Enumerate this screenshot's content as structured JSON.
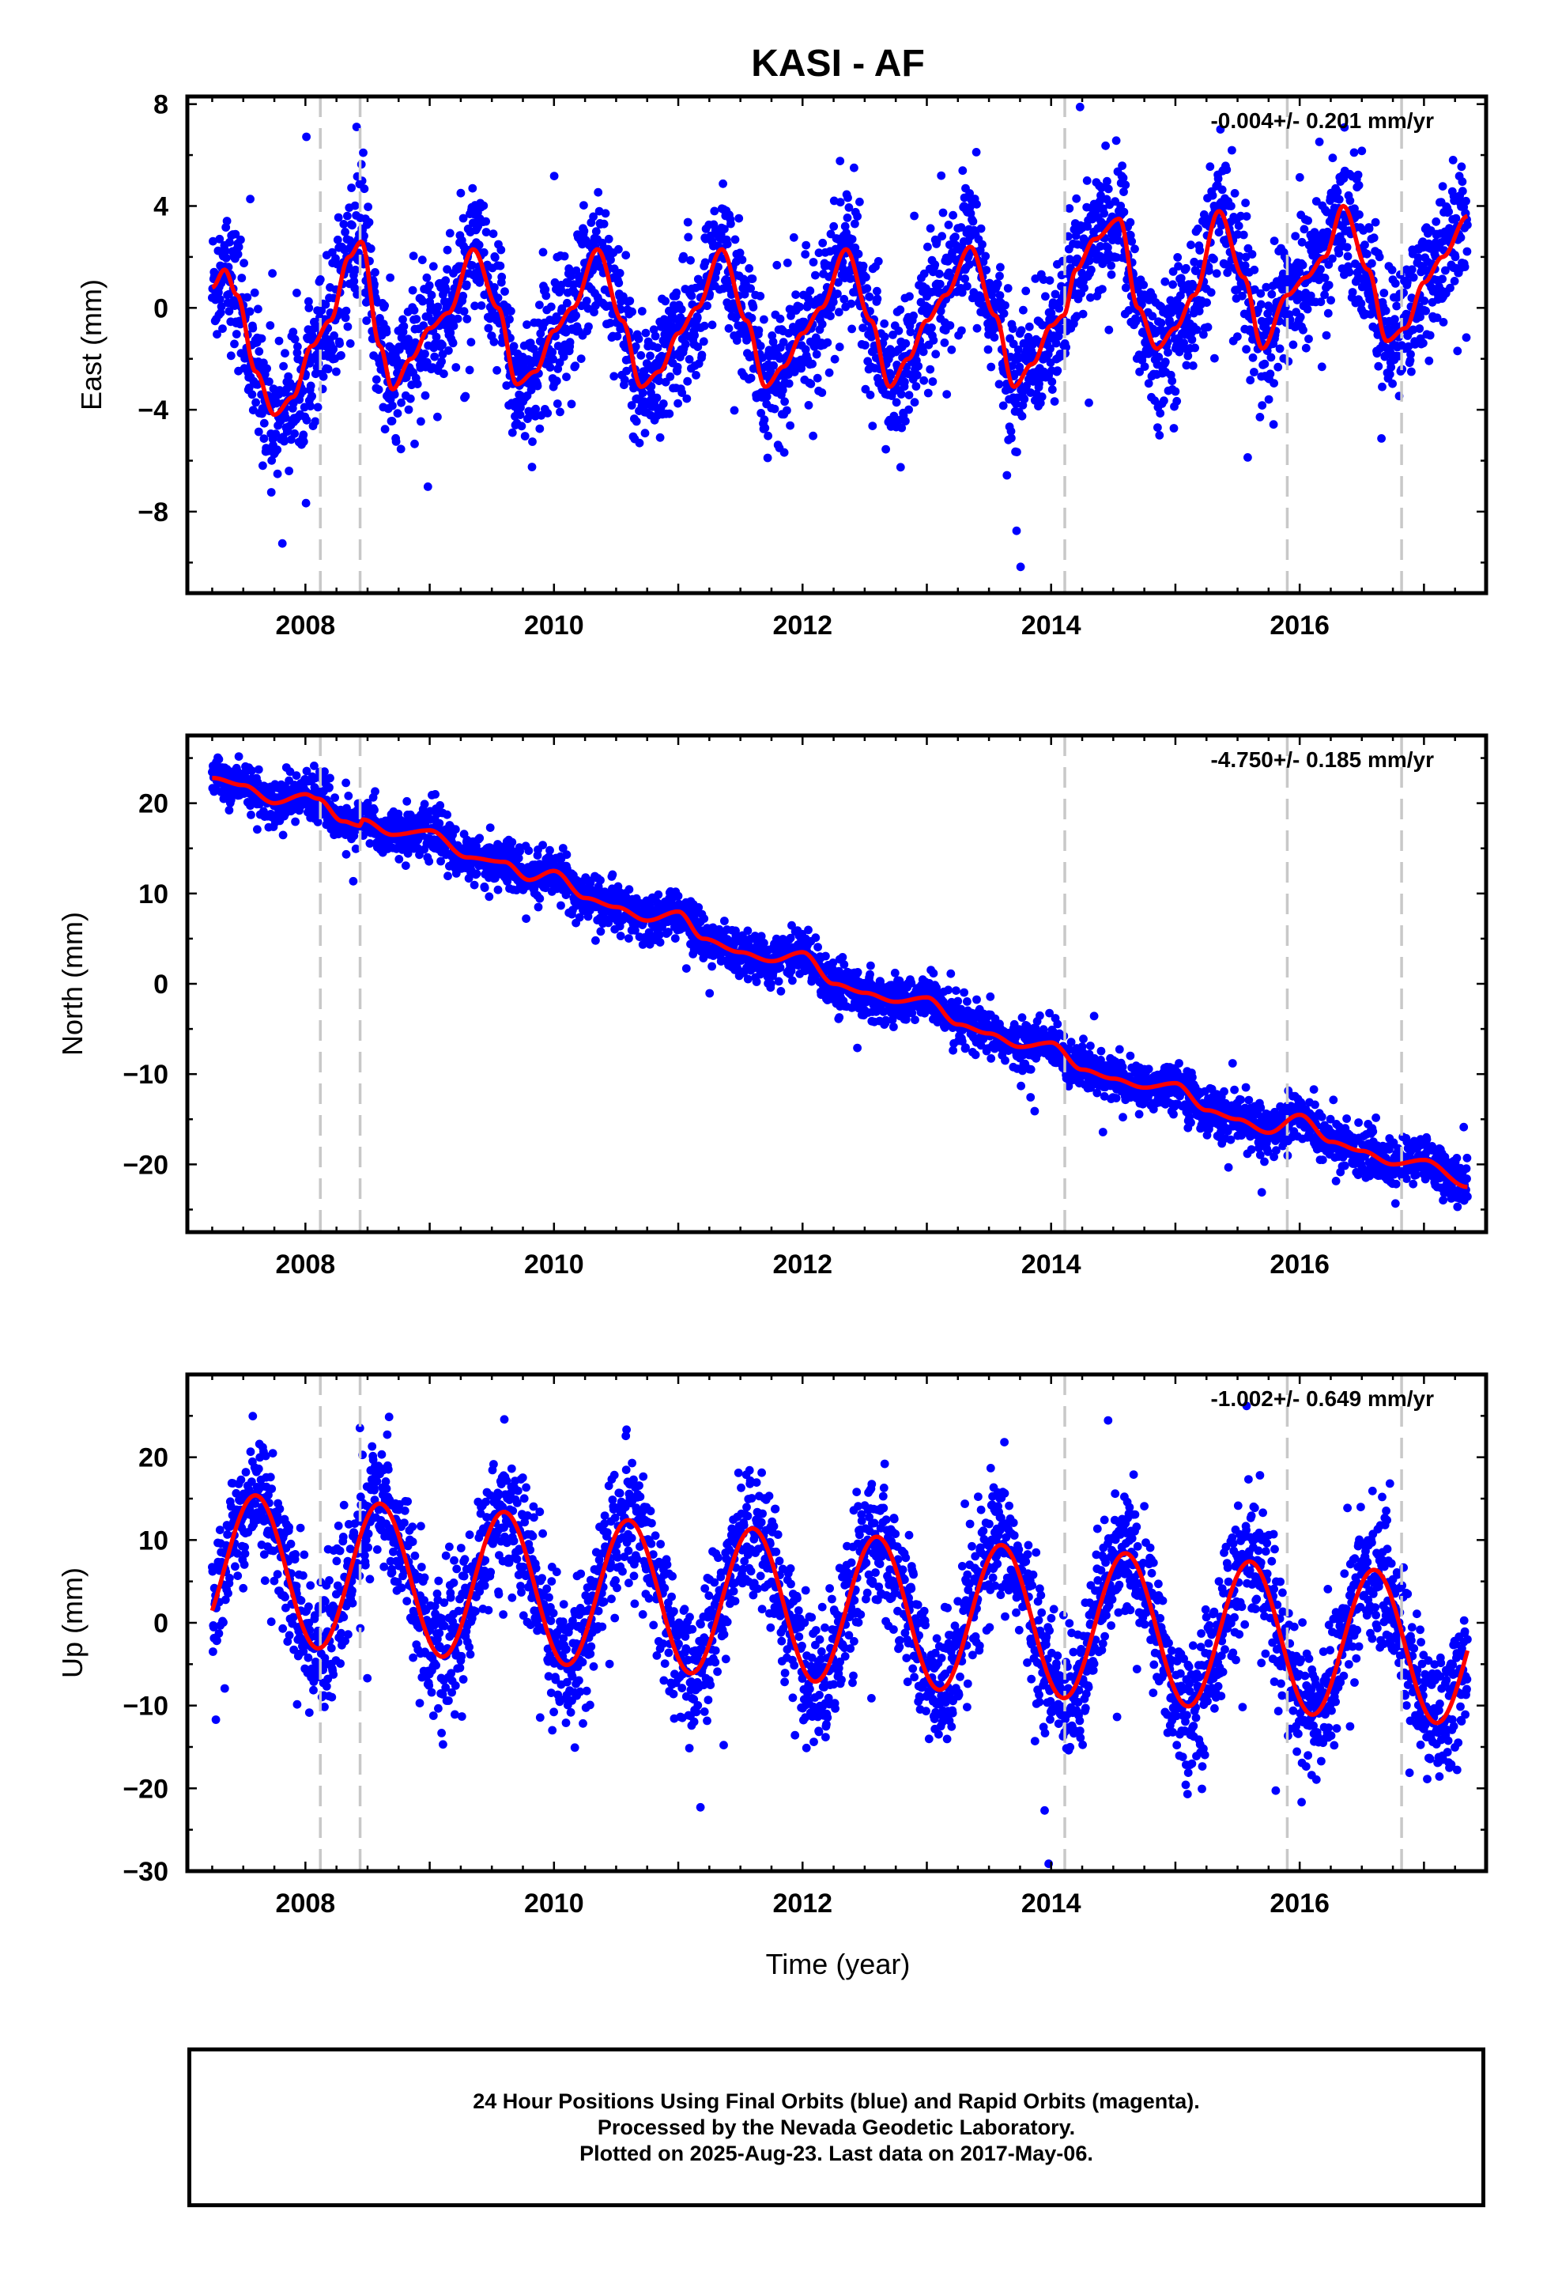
{
  "title": "KASI - AF",
  "colors": {
    "points": "#0000ff",
    "model": "#ff0000",
    "breaks": "#c8c8c8",
    "frame": "#000000"
  },
  "xlabel": "Time (year)",
  "footer": {
    "line1": "24 Hour Positions Using Final Orbits (blue) and Rapid Orbits (magenta).",
    "line2": "Processed by the Nevada Geodetic Laboratory.",
    "line3": "Plotted on 2025-Aug-23. Last data on 2017-May-06."
  },
  "chart_data": [
    {
      "type": "scatter",
      "component": "east",
      "ylabel": "East (mm)",
      "rate_label": "-0.004+/- 0.201 mm/yr",
      "xlim": [
        2007.05,
        2017.5
      ],
      "ylim": [
        -11.2,
        8.3
      ],
      "xticks": [
        2008,
        2010,
        2012,
        2014,
        2016
      ],
      "xtick_labels": [
        "2008",
        "2010",
        "2012",
        "2014",
        "2016"
      ],
      "yticks": [
        -8,
        -4,
        0,
        4,
        8
      ],
      "ytick_labels": [
        "−8",
        "−4",
        "0",
        "4",
        "8"
      ],
      "data_range": [
        2007.25,
        2017.35
      ],
      "breaks": [
        2008.12,
        2008.44,
        2014.11,
        2015.9,
        2016.82
      ],
      "series": [
        {
          "role": "model",
          "x": [
            2007.25,
            2007.35,
            2007.45,
            2007.6,
            2007.75,
            2007.9,
            2008.05,
            2008.2,
            2008.35,
            2008.45,
            2008.6,
            2008.7,
            2008.85,
            2009.0,
            2009.15,
            2009.35,
            2009.55,
            2009.7,
            2009.85,
            2010.0,
            2010.15,
            2010.35,
            2010.55,
            2010.7,
            2010.85,
            2011.0,
            2011.15,
            2011.35,
            2011.55,
            2011.7,
            2011.85,
            2012.0,
            2012.15,
            2012.35,
            2012.55,
            2012.7,
            2012.85,
            2013.0,
            2013.15,
            2013.35,
            2013.55,
            2013.7,
            2013.85,
            2014.0,
            2014.1,
            2014.2,
            2014.35,
            2014.55,
            2014.7,
            2014.85,
            2015.0,
            2015.15,
            2015.35,
            2015.55,
            2015.7,
            2015.9,
            2016.05,
            2016.2,
            2016.35,
            2016.55,
            2016.7,
            2016.85,
            2017.0,
            2017.15,
            2017.35
          ],
          "y": [
            0.8,
            1.5,
            0.5,
            -2.5,
            -4.2,
            -3.5,
            -1.5,
            -0.5,
            2.0,
            2.6,
            -1.5,
            -3.2,
            -2.0,
            -0.8,
            -0.2,
            2.3,
            0.0,
            -3.0,
            -2.5,
            -0.9,
            0.0,
            2.3,
            -0.5,
            -3.1,
            -2.5,
            -1.0,
            0.0,
            2.3,
            -0.5,
            -3.1,
            -2.3,
            -1.0,
            0.0,
            2.3,
            -0.5,
            -3.1,
            -2.0,
            -0.5,
            0.5,
            2.4,
            -0.3,
            -3.1,
            -2.2,
            -0.7,
            -0.3,
            1.5,
            2.7,
            3.5,
            0.0,
            -1.6,
            -0.8,
            0.5,
            3.8,
            1.2,
            -1.6,
            0.5,
            1.2,
            2.0,
            4.0,
            1.5,
            -1.3,
            -0.8,
            1.0,
            2.0,
            3.6
          ]
        },
        {
          "role": "observations",
          "note": "daily positions; amplitude about model",
          "scatter_sd_mm": 1.3
        }
      ]
    },
    {
      "type": "scatter",
      "component": "north",
      "ylabel": "North (mm)",
      "rate_label": "-4.750+/- 0.185 mm/yr",
      "xlim": [
        2007.05,
        2017.5
      ],
      "ylim": [
        -27.5,
        27.5
      ],
      "xticks": [
        2008,
        2010,
        2012,
        2014,
        2016
      ],
      "xtick_labels": [
        "2008",
        "2010",
        "2012",
        "2014",
        "2016"
      ],
      "yticks": [
        -20,
        -10,
        0,
        10,
        20
      ],
      "ytick_labels": [
        "−20",
        "−10",
        "0",
        "10",
        "20"
      ],
      "data_range": [
        2007.25,
        2017.35
      ],
      "breaks": [
        2008.12,
        2008.44,
        2014.11,
        2015.9,
        2016.82
      ],
      "series": [
        {
          "role": "model",
          "x": [
            2007.25,
            2007.5,
            2007.75,
            2008.0,
            2008.1,
            2008.3,
            2008.44,
            2008.46,
            2008.7,
            2009.0,
            2009.3,
            2009.6,
            2009.8,
            2010.0,
            2010.25,
            2010.5,
            2010.75,
            2011.0,
            2011.2,
            2011.5,
            2011.75,
            2012.0,
            2012.25,
            2012.5,
            2012.75,
            2013.0,
            2013.25,
            2013.5,
            2013.75,
            2014.0,
            2014.25,
            2014.5,
            2014.75,
            2015.0,
            2015.25,
            2015.5,
            2015.75,
            2016.0,
            2016.25,
            2016.5,
            2016.75,
            2017.0,
            2017.35
          ],
          "y": [
            22.8,
            22.0,
            20.0,
            21.0,
            20.5,
            18.0,
            17.5,
            18.2,
            16.5,
            17.0,
            14.0,
            13.5,
            11.5,
            12.5,
            9.5,
            8.5,
            7.0,
            8.0,
            5.0,
            3.5,
            2.5,
            3.5,
            0.0,
            -1.0,
            -2.0,
            -1.5,
            -4.5,
            -5.5,
            -7.0,
            -6.5,
            -9.5,
            -10.5,
            -11.5,
            -11.0,
            -14.0,
            -15.0,
            -16.5,
            -14.5,
            -17.5,
            -18.5,
            -20.0,
            -19.5,
            -22.5
          ]
        },
        {
          "role": "observations",
          "note": "daily positions; scatter about model",
          "scatter_sd_mm": 1.3
        }
      ]
    },
    {
      "type": "scatter",
      "component": "up",
      "ylabel": "Up (mm)",
      "rate_label": "-1.002+/- 0.649 mm/yr",
      "xlim": [
        2007.05,
        2017.5
      ],
      "ylim": [
        -30,
        30
      ],
      "xticks": [
        2008,
        2010,
        2012,
        2014,
        2016
      ],
      "xtick_labels": [
        "2008",
        "2010",
        "2012",
        "2014",
        "2016"
      ],
      "yticks": [
        -30,
        -20,
        -10,
        0,
        10,
        20
      ],
      "ytick_labels": [
        "−30",
        "−20",
        "−10",
        "0",
        "10",
        "20"
      ],
      "data_range": [
        2007.25,
        2017.35
      ],
      "breaks": [
        2008.12,
        2008.44,
        2014.11,
        2015.9,
        2016.82
      ],
      "series": [
        {
          "role": "model",
          "annual_sine": {
            "mean_2007": 7.0,
            "trend_per_yr": -1.0,
            "amplitude": 9.0,
            "peak_yr_fraction": 0.6
          }
        },
        {
          "role": "observations",
          "note": "daily positions; scatter about model",
          "scatter_sd_mm": 4.0
        }
      ]
    }
  ]
}
